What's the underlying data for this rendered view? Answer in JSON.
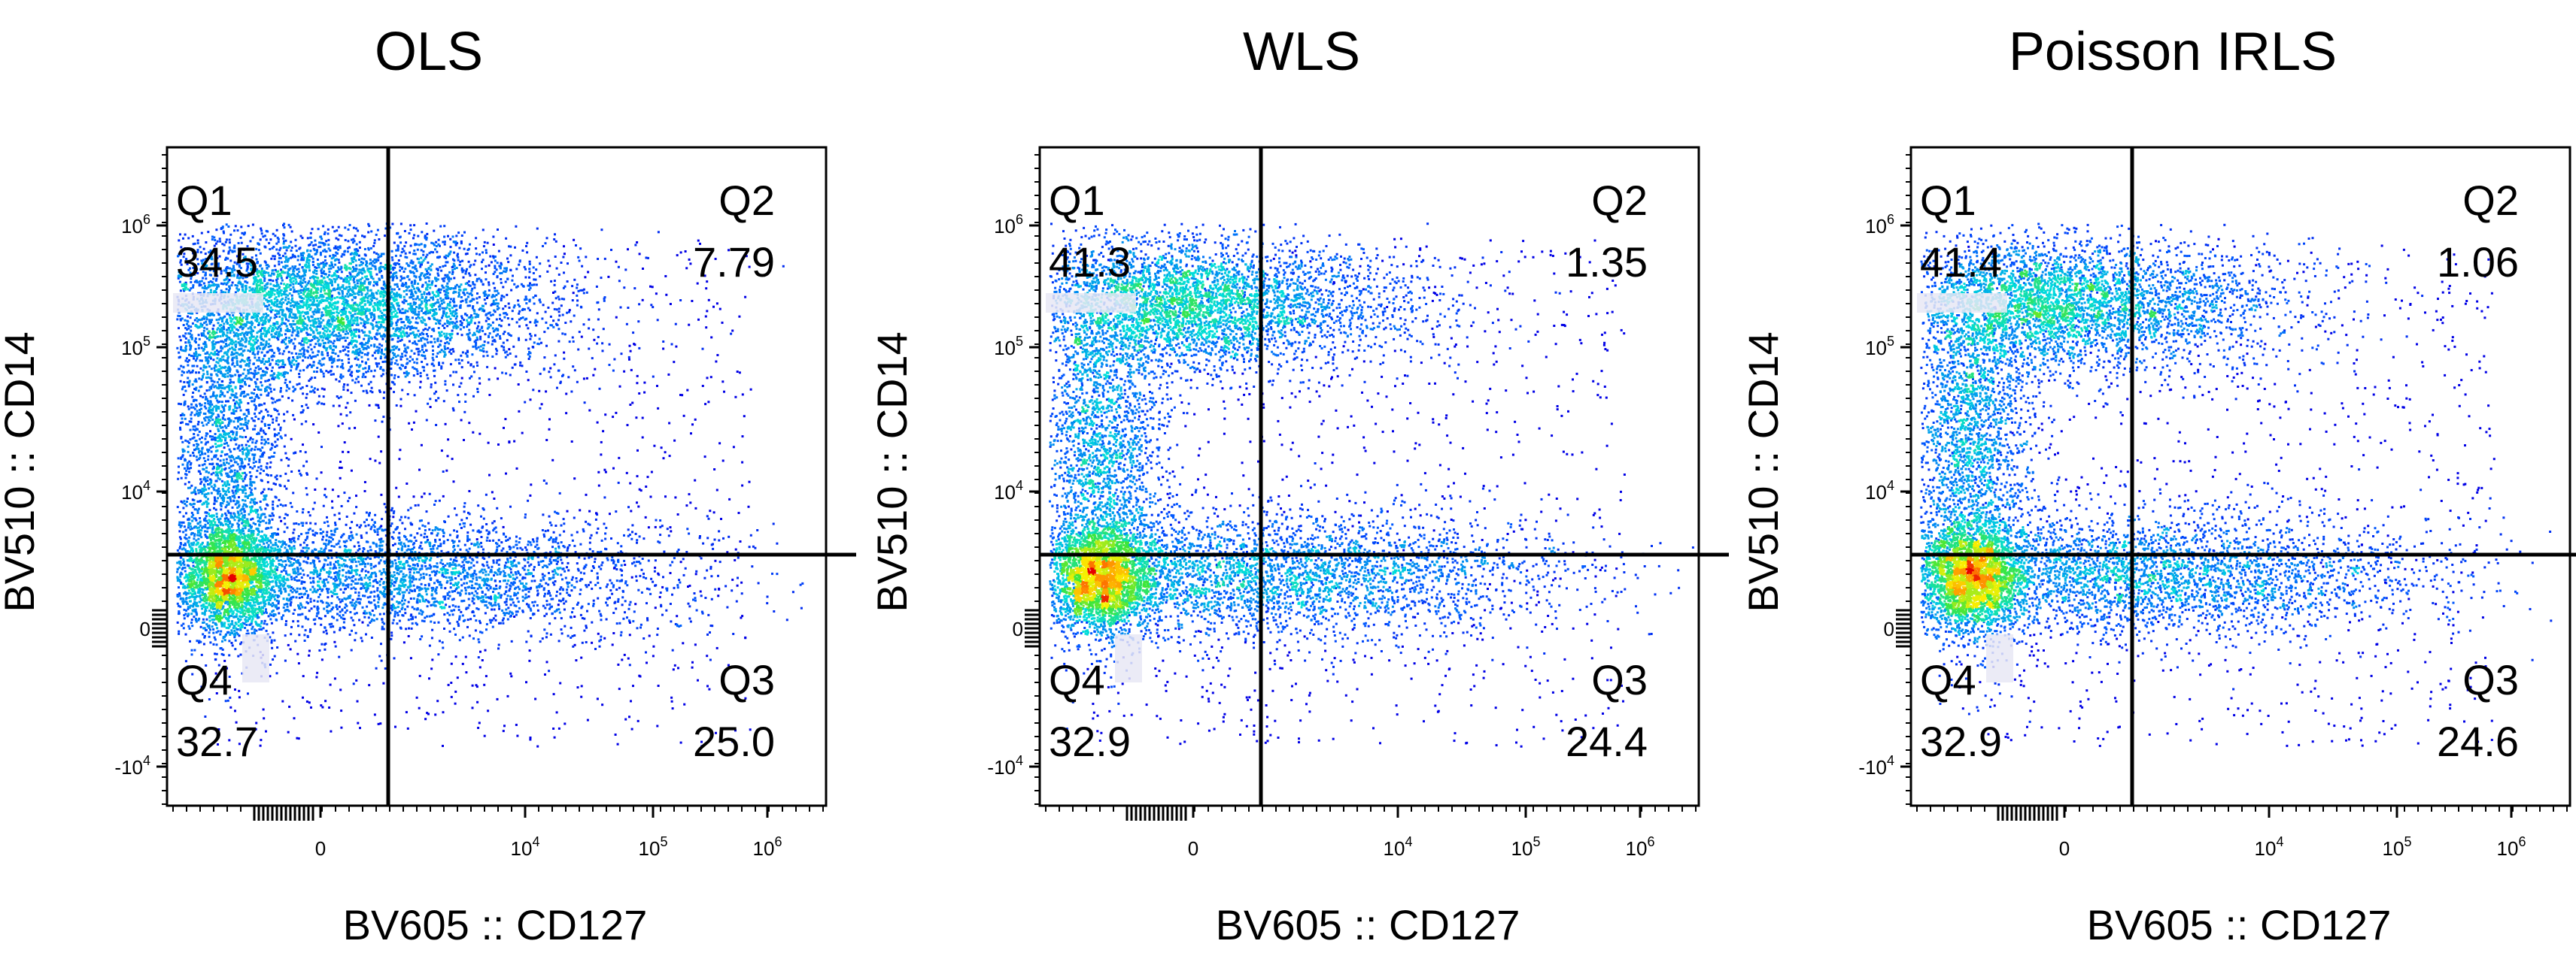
{
  "chart_data": [
    {
      "type": "scatter",
      "title": "OLS",
      "xlabel": "BV605 :: CD127",
      "ylabel": "BV510 :: CD14",
      "x_ticks": [
        "0",
        "10^4",
        "10^5",
        "10^6"
      ],
      "y_ticks": [
        "10^6",
        "10^5",
        "10^4",
        "0",
        "-10^4"
      ],
      "x_scale": "biexponential",
      "y_scale": "biexponential",
      "quadrants": [
        {
          "name": "Q1",
          "value": "34.5",
          "position": "top-left"
        },
        {
          "name": "Q2",
          "value": "7.79",
          "position": "top-right"
        },
        {
          "name": "Q3",
          "value": "25.0",
          "position": "bottom-right"
        },
        {
          "name": "Q4",
          "value": "32.7",
          "position": "bottom-left"
        }
      ],
      "colormap": "jet-density",
      "grid": false,
      "legend": "none"
    },
    {
      "type": "scatter",
      "title": "WLS",
      "xlabel": "BV605 :: CD127",
      "ylabel": "BV510 :: CD14",
      "x_ticks": [
        "0",
        "10^4",
        "10^5",
        "10^6"
      ],
      "y_ticks": [
        "10^6",
        "10^5",
        "10^4",
        "0",
        "-10^4"
      ],
      "x_scale": "biexponential",
      "y_scale": "biexponential",
      "quadrants": [
        {
          "name": "Q1",
          "value": "41.3",
          "position": "top-left"
        },
        {
          "name": "Q2",
          "value": "1.35",
          "position": "top-right"
        },
        {
          "name": "Q3",
          "value": "24.4",
          "position": "bottom-right"
        },
        {
          "name": "Q4",
          "value": "32.9",
          "position": "bottom-left"
        }
      ],
      "colormap": "jet-density",
      "grid": false,
      "legend": "none"
    },
    {
      "type": "scatter",
      "title": "Poisson IRLS",
      "xlabel": "BV605 :: CD127",
      "ylabel": "BV510 :: CD14",
      "x_ticks": [
        "0",
        "10^4",
        "10^5",
        "10^6"
      ],
      "y_ticks": [
        "10^6",
        "10^5",
        "10^4",
        "0",
        "-10^4"
      ],
      "x_scale": "biexponential",
      "y_scale": "biexponential",
      "quadrants": [
        {
          "name": "Q1",
          "value": "41.4",
          "position": "top-left"
        },
        {
          "name": "Q2",
          "value": "1.06",
          "position": "top-right"
        },
        {
          "name": "Q3",
          "value": "24.6",
          "position": "bottom-right"
        },
        {
          "name": "Q4",
          "value": "32.9",
          "position": "bottom-left"
        }
      ],
      "colormap": "jet-density",
      "grid": false,
      "legend": "none"
    }
  ]
}
